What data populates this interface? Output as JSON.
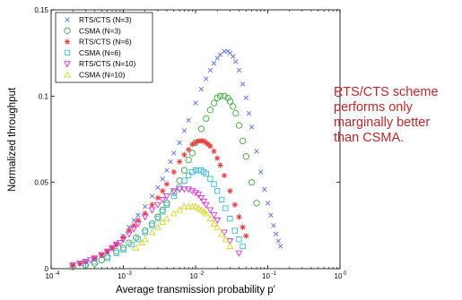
{
  "annotation": {
    "lines": [
      "RTS/CTS scheme",
      "performs only",
      "marginally better",
      "than CSMA."
    ],
    "color": "#c0282a"
  },
  "chart_data": {
    "type": "scatter",
    "title": "",
    "xlabel": "Average transmission probability p'",
    "ylabel": "Normalized throughput",
    "xscale": "log",
    "xlim": [
      0.0001,
      1
    ],
    "ylim": [
      0,
      0.15
    ],
    "xticks": [
      {
        "value": 0.0001,
        "label": "10",
        "exp": "-4"
      },
      {
        "value": 0.001,
        "label": "10",
        "exp": "-3"
      },
      {
        "value": 0.01,
        "label": "10",
        "exp": "-2"
      },
      {
        "value": 0.1,
        "label": "10",
        "exp": "-1"
      },
      {
        "value": 1,
        "label": "10",
        "exp": "0"
      }
    ],
    "yticks": [
      {
        "value": 0,
        "label": "0"
      },
      {
        "value": 0.05,
        "label": "0.05"
      },
      {
        "value": 0.1,
        "label": "0.1"
      },
      {
        "value": 0.15,
        "label": "0.15"
      }
    ],
    "grid": false,
    "legend_position": "top-left",
    "series": [
      {
        "name": "RTS/CTS (N=3)",
        "marker": "x",
        "color": "#5a6fe0",
        "x": [
          0.0002,
          0.00025,
          0.0003,
          0.0004,
          0.0005,
          0.0006,
          0.0007,
          0.0008,
          0.001,
          0.0012,
          0.0014,
          0.0016,
          0.002,
          0.0025,
          0.003,
          0.0035,
          0.004,
          0.0045,
          0.005,
          0.006,
          0.007,
          0.008,
          0.01,
          0.012,
          0.014,
          0.016,
          0.018,
          0.02,
          0.022,
          0.025,
          0.028,
          0.03,
          0.033,
          0.036,
          0.04,
          0.045,
          0.05,
          0.055,
          0.06,
          0.07,
          0.08,
          0.09,
          0.1,
          0.11,
          0.12,
          0.13,
          0.14,
          0.15
        ],
        "y": [
          0.002,
          0.003,
          0.004,
          0.006,
          0.008,
          0.01,
          0.012,
          0.014,
          0.019,
          0.024,
          0.028,
          0.031,
          0.036,
          0.042,
          0.047,
          0.052,
          0.057,
          0.062,
          0.067,
          0.073,
          0.08,
          0.086,
          0.096,
          0.104,
          0.11,
          0.115,
          0.119,
          0.122,
          0.124,
          0.126,
          0.126,
          0.125,
          0.123,
          0.12,
          0.115,
          0.107,
          0.099,
          0.09,
          0.082,
          0.068,
          0.056,
          0.046,
          0.038,
          0.031,
          0.025,
          0.02,
          0.016,
          0.013
        ]
      },
      {
        "name": "CSMA (N=3)",
        "marker": "circle",
        "color": "#3fa63f",
        "x": [
          0.0002,
          0.0003,
          0.0004,
          0.0005,
          0.0006,
          0.0008,
          0.001,
          0.0012,
          0.0015,
          0.002,
          0.0025,
          0.003,
          0.0035,
          0.004,
          0.005,
          0.006,
          0.007,
          0.008,
          0.009,
          0.01,
          0.012,
          0.014,
          0.016,
          0.018,
          0.02,
          0.022,
          0.025,
          0.028,
          0.03,
          0.033,
          0.036,
          0.04,
          0.045,
          0.05,
          0.06,
          0.07
        ],
        "y": [
          0.001,
          0.002,
          0.003,
          0.005,
          0.007,
          0.01,
          0.012,
          0.015,
          0.018,
          0.022,
          0.026,
          0.03,
          0.034,
          0.038,
          0.044,
          0.051,
          0.057,
          0.063,
          0.067,
          0.073,
          0.081,
          0.087,
          0.092,
          0.096,
          0.099,
          0.1,
          0.1,
          0.099,
          0.097,
          0.094,
          0.09,
          0.083,
          0.074,
          0.065,
          0.05,
          0.038
        ]
      },
      {
        "name": "RTS/CTS (N=6)",
        "marker": "star",
        "color": "#e23a3a",
        "x": [
          0.0002,
          0.00025,
          0.0003,
          0.0004,
          0.0005,
          0.0006,
          0.0007,
          0.0008,
          0.001,
          0.0012,
          0.0014,
          0.0016,
          0.002,
          0.0025,
          0.003,
          0.0035,
          0.004,
          0.005,
          0.006,
          0.007,
          0.008,
          0.009,
          0.01,
          0.011,
          0.012,
          0.013,
          0.014,
          0.015,
          0.016,
          0.018,
          0.02,
          0.022,
          0.025,
          0.03,
          0.035,
          0.04,
          0.045,
          0.05
        ],
        "y": [
          0.002,
          0.003,
          0.004,
          0.006,
          0.008,
          0.01,
          0.012,
          0.014,
          0.018,
          0.022,
          0.025,
          0.028,
          0.032,
          0.037,
          0.041,
          0.045,
          0.049,
          0.056,
          0.062,
          0.066,
          0.069,
          0.072,
          0.073,
          0.074,
          0.074,
          0.074,
          0.073,
          0.072,
          0.071,
          0.068,
          0.064,
          0.06,
          0.054,
          0.045,
          0.037,
          0.03,
          0.024,
          0.019
        ]
      },
      {
        "name": "CSMA (N=6)",
        "marker": "square",
        "color": "#3fb9d6",
        "x": [
          0.0003,
          0.0004,
          0.0006,
          0.0008,
          0.001,
          0.0013,
          0.0016,
          0.002,
          0.0025,
          0.003,
          0.0035,
          0.004,
          0.005,
          0.006,
          0.007,
          0.008,
          0.009,
          0.01,
          0.011,
          0.012,
          0.013,
          0.014,
          0.016,
          0.018,
          0.02,
          0.023,
          0.026,
          0.03,
          0.035,
          0.04,
          0.045
        ],
        "y": [
          0.003,
          0.004,
          0.006,
          0.009,
          0.011,
          0.014,
          0.017,
          0.021,
          0.025,
          0.029,
          0.033,
          0.037,
          0.042,
          0.047,
          0.051,
          0.054,
          0.056,
          0.057,
          0.057,
          0.057,
          0.056,
          0.055,
          0.052,
          0.049,
          0.045,
          0.04,
          0.035,
          0.029,
          0.022,
          0.017,
          0.013
        ]
      },
      {
        "name": "RTS/CTS (N=10)",
        "marker": "triangle-down",
        "color": "#d632d6",
        "x": [
          0.0002,
          0.00025,
          0.0003,
          0.00035,
          0.0004,
          0.0005,
          0.0006,
          0.0007,
          0.0008,
          0.0009,
          0.001,
          0.0012,
          0.0014,
          0.0016,
          0.002,
          0.0025,
          0.003,
          0.0035,
          0.004,
          0.005,
          0.006,
          0.007,
          0.008,
          0.009,
          0.01,
          0.011,
          0.012,
          0.013,
          0.014,
          0.016,
          0.018,
          0.02,
          0.025,
          0.03,
          0.04
        ],
        "y": [
          0.002,
          0.003,
          0.004,
          0.005,
          0.006,
          0.008,
          0.01,
          0.012,
          0.014,
          0.015,
          0.017,
          0.02,
          0.023,
          0.026,
          0.03,
          0.034,
          0.037,
          0.04,
          0.042,
          0.045,
          0.046,
          0.046,
          0.046,
          0.045,
          0.044,
          0.043,
          0.041,
          0.039,
          0.037,
          0.034,
          0.031,
          0.028,
          0.021,
          0.016,
          0.009
        ]
      },
      {
        "name": "CSMA (N=10)",
        "marker": "triangle-up",
        "color": "#d6d62a",
        "x": [
          0.0015,
          0.0018,
          0.002,
          0.0025,
          0.003,
          0.0035,
          0.004,
          0.005,
          0.006,
          0.007,
          0.008,
          0.009,
          0.01,
          0.011,
          0.012,
          0.013,
          0.014,
          0.016,
          0.018,
          0.02,
          0.023,
          0.026,
          0.03
        ],
        "y": [
          0.012,
          0.015,
          0.017,
          0.021,
          0.024,
          0.027,
          0.029,
          0.032,
          0.034,
          0.036,
          0.036,
          0.036,
          0.036,
          0.035,
          0.034,
          0.033,
          0.032,
          0.029,
          0.026,
          0.024,
          0.02,
          0.017,
          0.013
        ]
      }
    ]
  }
}
